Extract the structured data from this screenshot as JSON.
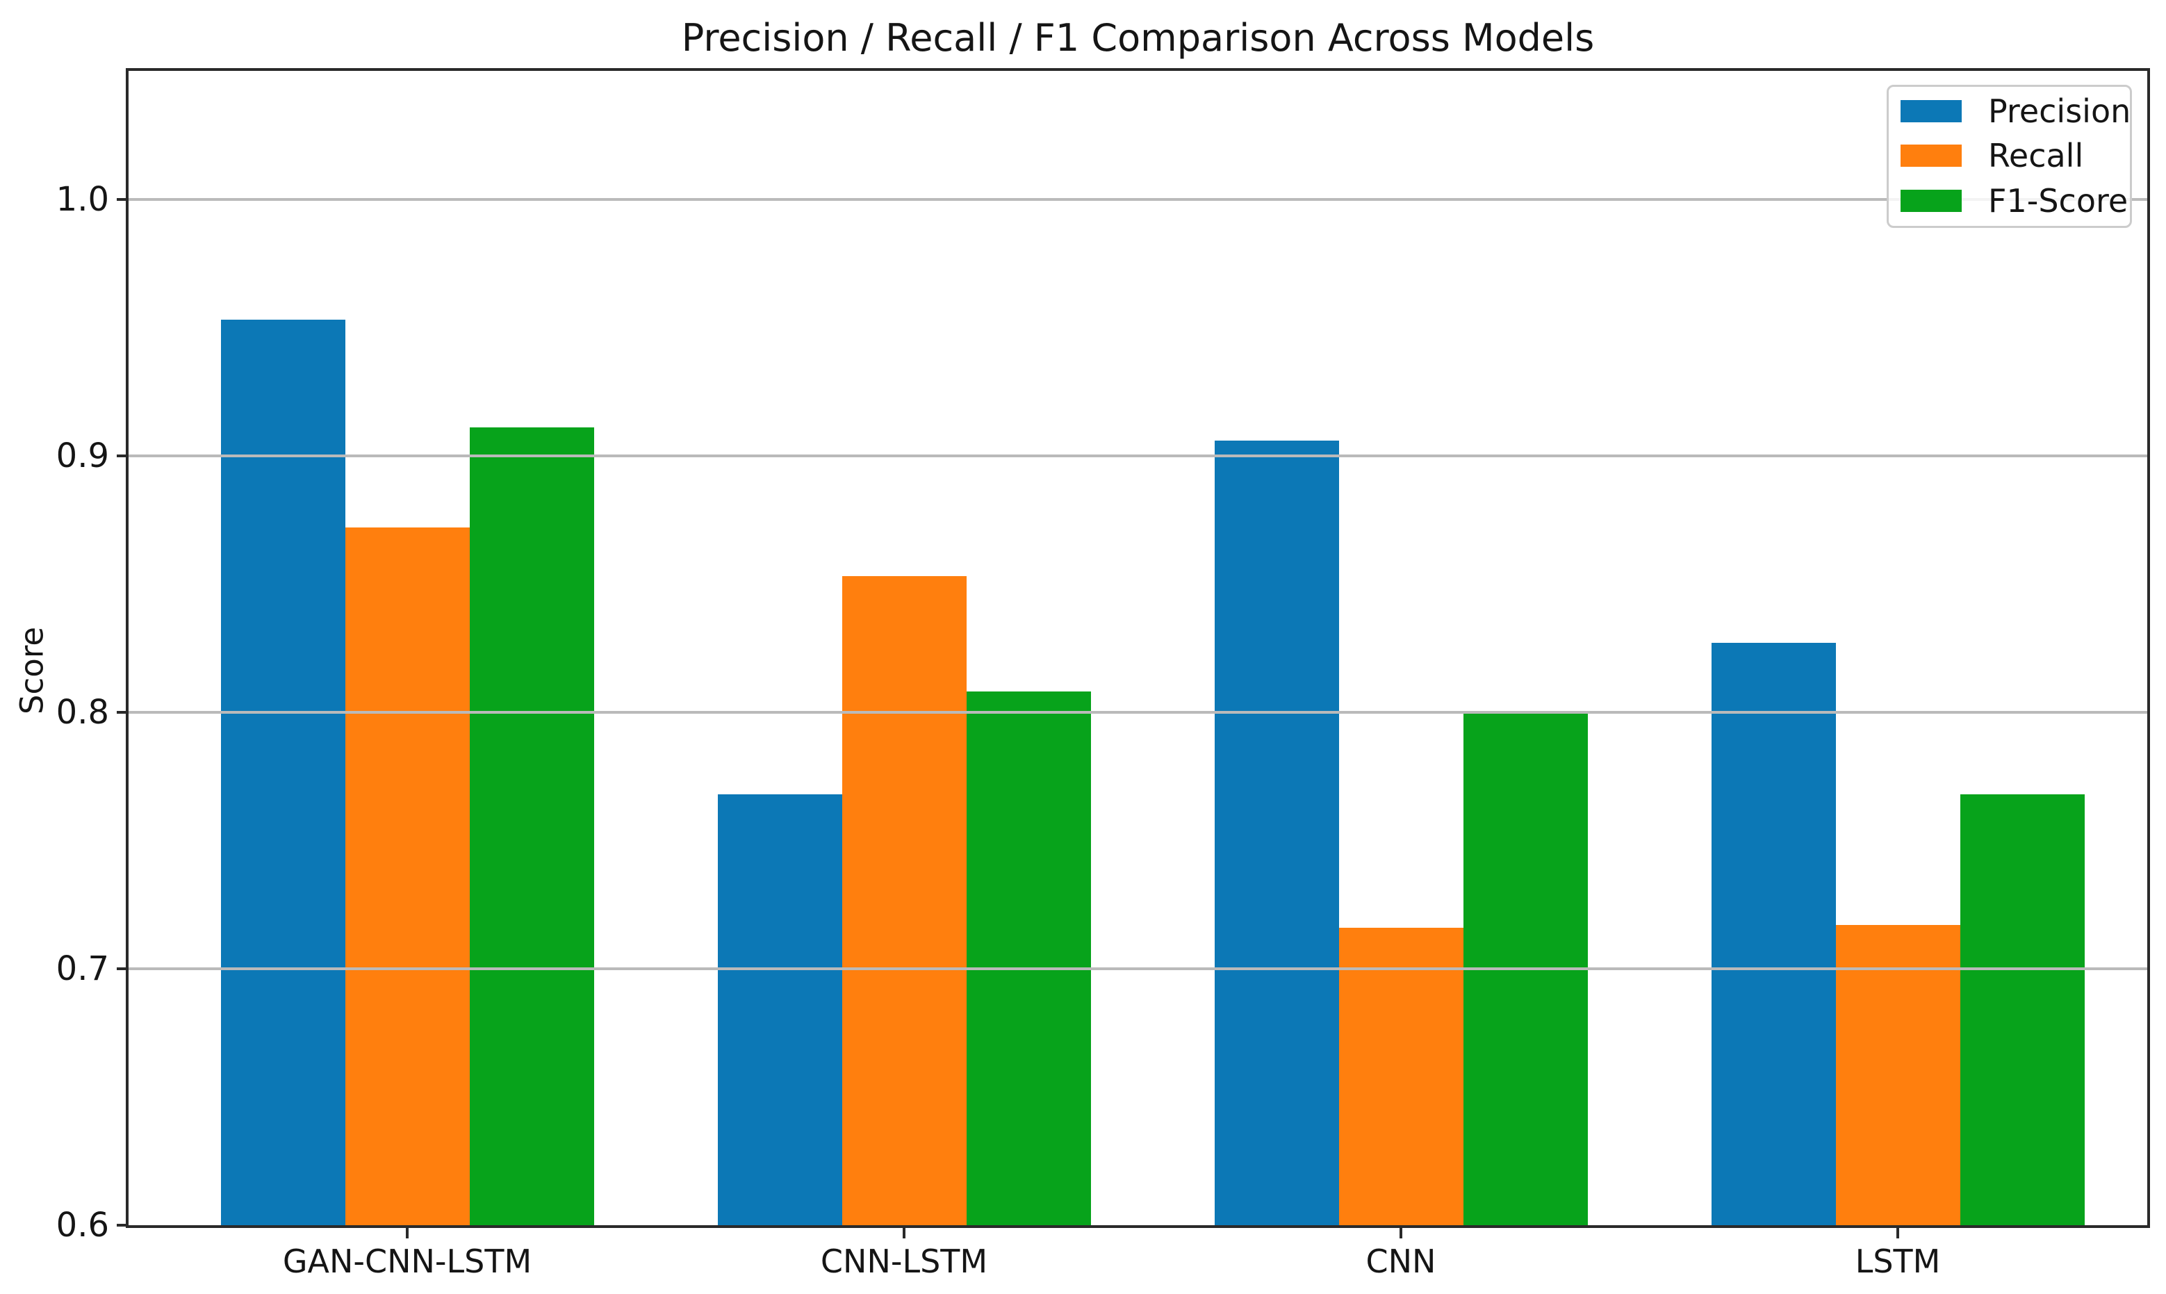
{
  "chart_data": {
    "type": "bar",
    "title": "Precision / Recall / F1 Comparison Across Models",
    "xlabel": "",
    "ylabel": "Score",
    "categories": [
      "GAN-CNN-LSTM",
      "CNN-LSTM",
      "CNN",
      "LSTM"
    ],
    "series": [
      {
        "name": "Precision",
        "color": "#0c78b6",
        "values": [
          0.953,
          0.768,
          0.906,
          0.827
        ]
      },
      {
        "name": "Recall",
        "color": "#ff7f0e",
        "values": [
          0.872,
          0.853,
          0.716,
          0.717
        ]
      },
      {
        "name": "F1-Score",
        "color": "#07a31b",
        "values": [
          0.911,
          0.808,
          0.8,
          0.768
        ]
      }
    ],
    "ylim": [
      0.6,
      1.05
    ],
    "yticks": [
      {
        "label": "0.6",
        "value": 0.6
      },
      {
        "label": "0.7",
        "value": 0.7
      },
      {
        "label": "0.8",
        "value": 0.8
      },
      {
        "label": "0.9",
        "value": 0.9
      },
      {
        "label": "1.0",
        "value": 1.0
      }
    ],
    "grid": "y",
    "grid_color": "#bababa",
    "legend_position": "upper right",
    "background": "#ffffff",
    "spine_color": "#2a2a2a",
    "text_color": "#151515"
  }
}
